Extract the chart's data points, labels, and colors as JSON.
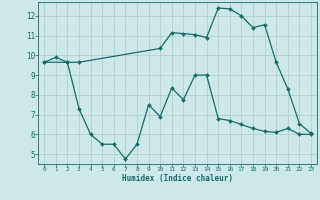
{
  "title": "",
  "xlabel": "Humidex (Indice chaleur)",
  "ylabel": "",
  "background_color": "#cce8e8",
  "grid_color": "#aacccc",
  "line_color": "#1a6b6b",
  "xlim": [
    -0.5,
    23.5
  ],
  "ylim": [
    4.5,
    12.7
  ],
  "xticks": [
    0,
    1,
    2,
    3,
    4,
    5,
    6,
    7,
    8,
    9,
    10,
    11,
    12,
    13,
    14,
    15,
    16,
    17,
    18,
    19,
    20,
    21,
    22,
    23
  ],
  "yticks": [
    5,
    6,
    7,
    8,
    9,
    10,
    11,
    12
  ],
  "line1_x": [
    0,
    1,
    2,
    3,
    10,
    11,
    12,
    13,
    14,
    15,
    16,
    17,
    18,
    19,
    20,
    21,
    22,
    23
  ],
  "line1_y": [
    9.65,
    9.9,
    9.65,
    9.65,
    10.35,
    11.15,
    11.1,
    11.05,
    10.9,
    12.4,
    12.35,
    12.0,
    11.4,
    11.55,
    9.65,
    8.3,
    6.55,
    6.05
  ],
  "line2_x": [
    0,
    2,
    3,
    4,
    5,
    6,
    7,
    8,
    9,
    10,
    11,
    12,
    13,
    14,
    15,
    16,
    17,
    18,
    19,
    20,
    21,
    22,
    23
  ],
  "line2_y": [
    9.65,
    9.65,
    7.3,
    6.0,
    5.5,
    5.5,
    4.75,
    5.5,
    7.5,
    6.9,
    8.35,
    7.75,
    9.0,
    9.0,
    6.8,
    6.7,
    6.5,
    6.3,
    6.15,
    6.1,
    6.3,
    6.0,
    6.0
  ]
}
